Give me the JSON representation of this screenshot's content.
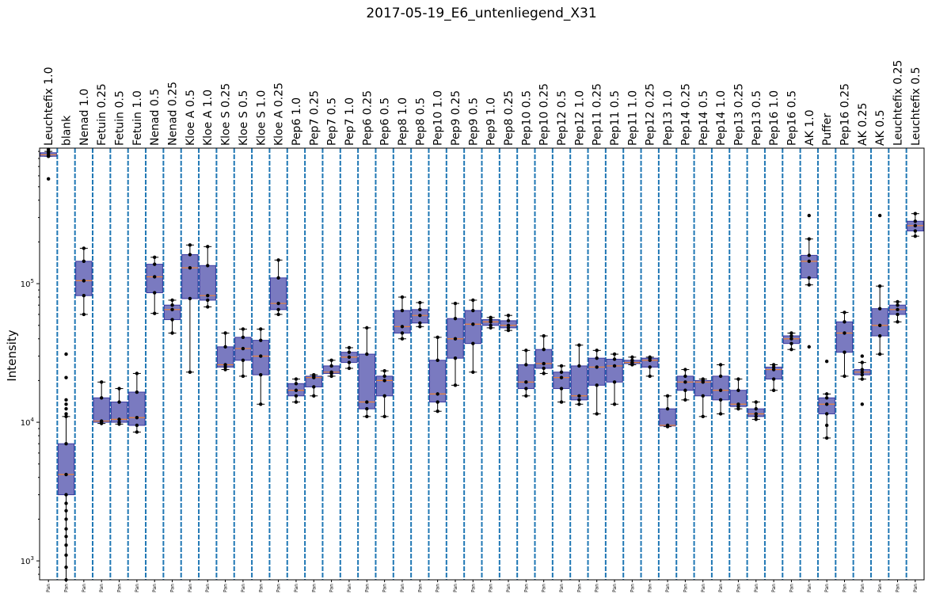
{
  "chart_data": {
    "type": "box",
    "title": "2017-05-19_E6_untenliegend_X31",
    "ylabel": "Intensity",
    "yscale": "log",
    "ylim": [
      730,
      950000
    ],
    "yticks": [
      {
        "value": 1000,
        "base": "10",
        "exp": "3"
      },
      {
        "value": 10000,
        "base": "10",
        "exp": "4"
      },
      {
        "value": 100000,
        "base": "10",
        "exp": "5"
      }
    ],
    "xtick_label": "Pan",
    "box_color": "#7a7ac0",
    "median_color": "#e8823a",
    "separator_color": "#1f77b4",
    "categories": [
      "Leuchtefix 1.0",
      "blank",
      "Nenad 1.0",
      "Fetuin 0.25",
      "Fetuin 0.5",
      "Fetuin 1.0",
      "Nenad 0.5",
      "Nenad 0.25",
      "Kloe A 0.5",
      "Kloe A 1.0",
      "Kloe S 0.25",
      "Kloe S 0.5",
      "Kloe S 1.0",
      "Kloe A 0.25",
      "Pep6 1.0",
      "Pep7 0.25",
      "Pep7 0.5",
      "Pep7 1.0",
      "Pep6 0.25",
      "Pep6 0.5",
      "Pep8 1.0",
      "Pep8 0.5",
      "Pep10 1.0",
      "Pep9 0.25",
      "Pep9 0.5",
      "Pep9 1.0",
      "Pep8 0.25",
      "Pep10 0.5",
      "Pep10 0.25",
      "Pep12 0.5",
      "Pep12 1.0",
      "Pep11 0.25",
      "Pep11 0.5",
      "Pep11 1.0",
      "Pep12 0.25",
      "Pep13 1.0",
      "Pep14 0.25",
      "Pep14 0.5",
      "Pep14 1.0",
      "Pep13 0.25",
      "Pep13 0.5",
      "Pep16 1.0",
      "Pep16 0.5",
      "AK 1.0",
      "Puffer",
      "Pep16 0.25",
      "AK 0.25",
      "AK 0.5",
      "Leuchtefix 0.25",
      "Leuchtefix 0.5"
    ],
    "boxes": [
      {
        "min": 830000,
        "q1": 830000,
        "median": 850000,
        "q3": 880000,
        "max": 900000,
        "outliers": [
          570000,
          930000
        ]
      },
      {
        "min": 730,
        "q1": 3000,
        "median": 4200,
        "q3": 7000,
        "max": 11000,
        "outliers": [
          900,
          1100,
          1300,
          1500,
          1700,
          2000,
          2300,
          2600,
          11500,
          12500,
          13500,
          14500,
          21000,
          31000
        ]
      },
      {
        "min": 60000,
        "q1": 82000,
        "median": 105000,
        "q3": 145000,
        "max": 180000,
        "outliers": []
      },
      {
        "min": 9800,
        "q1": 10000,
        "median": 10200,
        "q3": 15000,
        "max": 19500,
        "outliers": []
      },
      {
        "min": 9700,
        "q1": 10000,
        "median": 10500,
        "q3": 14000,
        "max": 17500,
        "outliers": []
      },
      {
        "min": 8500,
        "q1": 9500,
        "median": 10800,
        "q3": 16500,
        "max": 22500,
        "outliers": []
      },
      {
        "min": 61000,
        "q1": 86000,
        "median": 112000,
        "q3": 138000,
        "max": 155000,
        "outliers": []
      },
      {
        "min": 44000,
        "q1": 55000,
        "median": 65000,
        "q3": 70000,
        "max": 76000,
        "outliers": []
      },
      {
        "min": 23000,
        "q1": 78000,
        "median": 130000,
        "q3": 162000,
        "max": 190000,
        "outliers": []
      },
      {
        "min": 68000,
        "q1": 76000,
        "median": 82000,
        "q3": 135000,
        "max": 185000,
        "outliers": []
      },
      {
        "min": 24000,
        "q1": 25000,
        "median": 26000,
        "q3": 35000,
        "max": 44000,
        "outliers": []
      },
      {
        "min": 21500,
        "q1": 28000,
        "median": 34000,
        "q3": 41000,
        "max": 47000,
        "outliers": []
      },
      {
        "min": 13500,
        "q1": 22000,
        "median": 30000,
        "q3": 39000,
        "max": 47000,
        "outliers": []
      },
      {
        "min": 60000,
        "q1": 65000,
        "median": 72000,
        "q3": 110000,
        "max": 148000,
        "outliers": []
      },
      {
        "min": 14000,
        "q1": 15500,
        "median": 17000,
        "q3": 19000,
        "max": 20500,
        "outliers": []
      },
      {
        "min": 15500,
        "q1": 18000,
        "median": 21000,
        "q3": 21500,
        "max": 22000,
        "outliers": []
      },
      {
        "min": 21500,
        "q1": 22500,
        "median": 23000,
        "q3": 25500,
        "max": 28000,
        "outliers": []
      },
      {
        "min": 24500,
        "q1": 27000,
        "median": 29500,
        "q3": 32000,
        "max": 34500,
        "outliers": []
      },
      {
        "min": 11000,
        "q1": 12500,
        "median": 14000,
        "q3": 31000,
        "max": 48000,
        "outliers": []
      },
      {
        "min": 11000,
        "q1": 15500,
        "median": 20000,
        "q3": 21500,
        "max": 23500,
        "outliers": []
      },
      {
        "min": 40000,
        "q1": 44000,
        "median": 49000,
        "q3": 64000,
        "max": 80000,
        "outliers": []
      },
      {
        "min": 49000,
        "q1": 52000,
        "median": 59000,
        "q3": 65000,
        "max": 73000,
        "outliers": []
      },
      {
        "min": 12000,
        "q1": 14000,
        "median": 16000,
        "q3": 28000,
        "max": 41000,
        "outliers": []
      },
      {
        "min": 18500,
        "q1": 29000,
        "median": 40000,
        "q3": 56000,
        "max": 72000,
        "outliers": []
      },
      {
        "min": 23000,
        "q1": 37000,
        "median": 51000,
        "q3": 64000,
        "max": 76000,
        "outliers": []
      },
      {
        "min": 48000,
        "q1": 50000,
        "median": 53000,
        "q3": 55000,
        "max": 57000,
        "outliers": []
      },
      {
        "min": 46000,
        "q1": 48000,
        "median": 50000,
        "q3": 54000,
        "max": 59000,
        "outliers": []
      },
      {
        "min": 15500,
        "q1": 17500,
        "median": 19500,
        "q3": 26000,
        "max": 33000,
        "outliers": []
      },
      {
        "min": 22500,
        "q1": 24500,
        "median": 26500,
        "q3": 33500,
        "max": 42000,
        "outliers": []
      },
      {
        "min": 14000,
        "q1": 17500,
        "median": 21000,
        "q3": 23000,
        "max": 25500,
        "outliers": []
      },
      {
        "min": 13500,
        "q1": 14500,
        "median": 15500,
        "q3": 25500,
        "max": 36000,
        "outliers": []
      },
      {
        "min": 11500,
        "q1": 18500,
        "median": 25000,
        "q3": 29000,
        "max": 33000,
        "outliers": []
      },
      {
        "min": 13500,
        "q1": 19500,
        "median": 25500,
        "q3": 28500,
        "max": 31000,
        "outliers": []
      },
      {
        "min": 26000,
        "q1": 26500,
        "median": 27000,
        "q3": 28000,
        "max": 29500,
        "outliers": []
      },
      {
        "min": 21500,
        "q1": 25000,
        "median": 28000,
        "q3": 29000,
        "max": 29500,
        "outliers": []
      },
      {
        "min": 9300,
        "q1": 9400,
        "median": 9500,
        "q3": 12500,
        "max": 15500,
        "outliers": []
      },
      {
        "min": 14500,
        "q1": 17000,
        "median": 19500,
        "q3": 21500,
        "max": 24000,
        "outliers": []
      },
      {
        "min": 11000,
        "q1": 15500,
        "median": 19500,
        "q3": 20000,
        "max": 20500,
        "outliers": []
      },
      {
        "min": 11500,
        "q1": 14500,
        "median": 17000,
        "q3": 21500,
        "max": 26000,
        "outliers": []
      },
      {
        "min": 12500,
        "q1": 13000,
        "median": 13500,
        "q3": 17000,
        "max": 20500,
        "outliers": []
      },
      {
        "min": 10500,
        "q1": 11000,
        "median": 11500,
        "q3": 12500,
        "max": 14000,
        "outliers": []
      },
      {
        "min": 17000,
        "q1": 20500,
        "median": 24000,
        "q3": 25000,
        "max": 26000,
        "outliers": []
      },
      {
        "min": 33500,
        "q1": 37000,
        "median": 40000,
        "q3": 42000,
        "max": 44000,
        "outliers": []
      },
      {
        "min": 98000,
        "q1": 110000,
        "median": 145000,
        "q3": 160000,
        "max": 210000,
        "outliers": [
          35000,
          310000
        ]
      },
      {
        "min": 7700,
        "q1": 11500,
        "median": 13500,
        "q3": 15000,
        "max": 16000,
        "outliers": [
          9500,
          27500
        ]
      },
      {
        "min": 21500,
        "q1": 32000,
        "median": 44000,
        "q3": 53000,
        "max": 62000,
        "outliers": []
      },
      {
        "min": 20500,
        "q1": 22000,
        "median": 23000,
        "q3": 24000,
        "max": 27000,
        "outliers": [
          13500,
          30000
        ]
      },
      {
        "min": 31000,
        "q1": 42000,
        "median": 50000,
        "q3": 66000,
        "max": 96000,
        "outliers": [
          310000
        ]
      },
      {
        "min": 53000,
        "q1": 60000,
        "median": 65000,
        "q3": 70000,
        "max": 74000,
        "outliers": []
      },
      {
        "min": 220000,
        "q1": 240000,
        "median": 262000,
        "q3": 282000,
        "max": 320000,
        "outliers": []
      }
    ]
  }
}
